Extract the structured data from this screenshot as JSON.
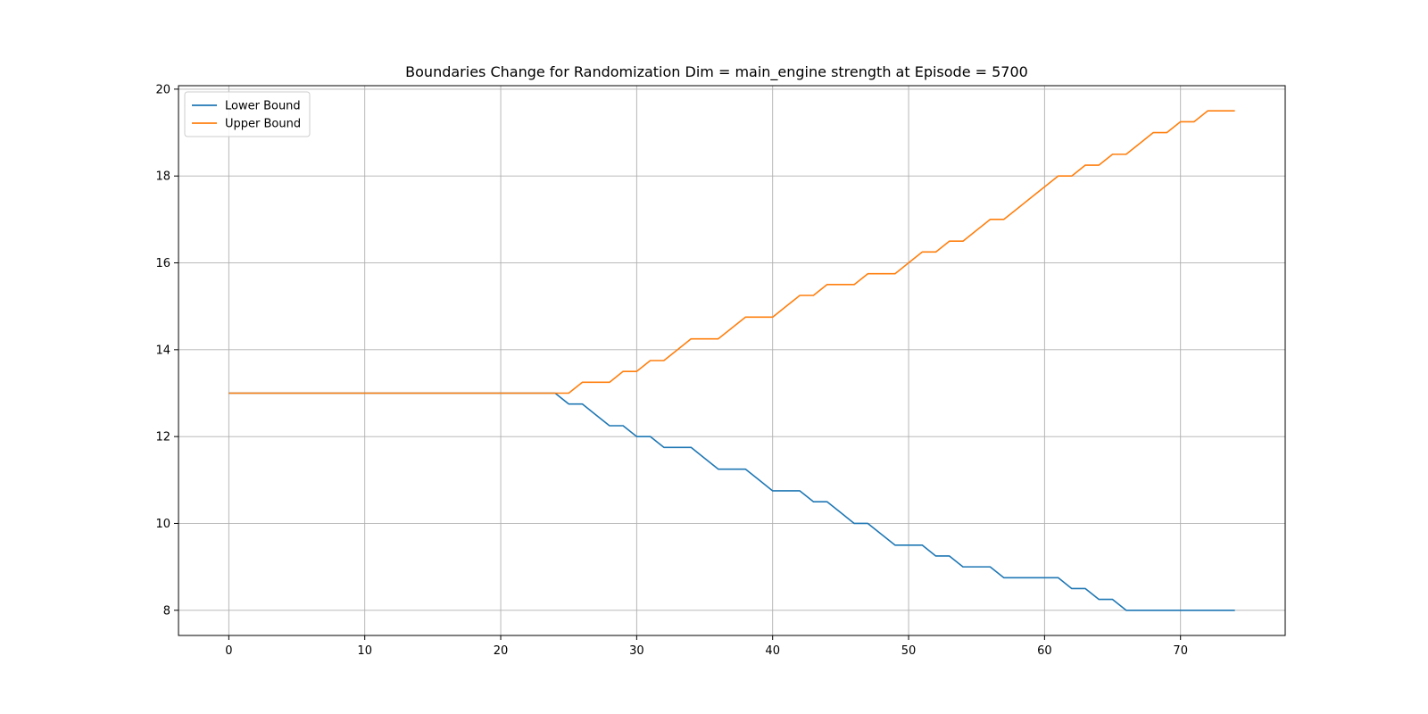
{
  "chart_data": {
    "type": "line",
    "title": "Boundaries Change for Randomization Dim = main_engine strength at Episode = 5700",
    "xlabel": "",
    "ylabel": "",
    "xlim": [
      -3.7,
      77.7
    ],
    "ylim": [
      7.42,
      20.08
    ],
    "xticks": [
      0,
      10,
      20,
      30,
      40,
      50,
      60,
      70
    ],
    "yticks": [
      8,
      10,
      12,
      14,
      16,
      18,
      20
    ],
    "grid": true,
    "legend_position": "top-left",
    "x": [
      0,
      1,
      2,
      3,
      4,
      5,
      6,
      7,
      8,
      9,
      10,
      11,
      12,
      13,
      14,
      15,
      16,
      17,
      18,
      19,
      20,
      21,
      22,
      23,
      24,
      25,
      26,
      27,
      28,
      29,
      30,
      31,
      32,
      33,
      34,
      35,
      36,
      37,
      38,
      39,
      40,
      41,
      42,
      43,
      44,
      45,
      46,
      47,
      48,
      49,
      50,
      51,
      52,
      53,
      54,
      55,
      56,
      57,
      58,
      59,
      60,
      61,
      62,
      63,
      64,
      65,
      66,
      67,
      68,
      69,
      70,
      71,
      72,
      73,
      74
    ],
    "series": [
      {
        "name": "Lower Bound",
        "color": "#1f77b4",
        "values": [
          13,
          13,
          13,
          13,
          13,
          13,
          13,
          13,
          13,
          13,
          13,
          13,
          13,
          13,
          13,
          13,
          13,
          13,
          13,
          13,
          13,
          13,
          13,
          13,
          13,
          12.75,
          12.75,
          12.5,
          12.25,
          12.25,
          12,
          12,
          11.75,
          11.75,
          11.75,
          11.5,
          11.25,
          11.25,
          11.25,
          11,
          10.75,
          10.75,
          10.75,
          10.5,
          10.5,
          10.25,
          10,
          10,
          9.75,
          9.5,
          9.5,
          9.5,
          9.25,
          9.25,
          9,
          9,
          9,
          8.75,
          8.75,
          8.75,
          8.75,
          8.75,
          8.5,
          8.5,
          8.25,
          8.25,
          8,
          8,
          8,
          8,
          8,
          8,
          8,
          8,
          8
        ]
      },
      {
        "name": "Upper Bound",
        "color": "#ff7f0e",
        "values": [
          13,
          13,
          13,
          13,
          13,
          13,
          13,
          13,
          13,
          13,
          13,
          13,
          13,
          13,
          13,
          13,
          13,
          13,
          13,
          13,
          13,
          13,
          13,
          13,
          13,
          13,
          13.25,
          13.25,
          13.25,
          13.5,
          13.5,
          13.75,
          13.75,
          14,
          14.25,
          14.25,
          14.25,
          14.5,
          14.75,
          14.75,
          14.75,
          15,
          15.25,
          15.25,
          15.5,
          15.5,
          15.5,
          15.75,
          15.75,
          15.75,
          16,
          16.25,
          16.25,
          16.5,
          16.5,
          16.75,
          17,
          17,
          17.25,
          17.5,
          17.75,
          18,
          18,
          18.25,
          18.25,
          18.5,
          18.5,
          18.75,
          19,
          19,
          19.25,
          19.25,
          19.5,
          19.5,
          19.5
        ]
      }
    ]
  }
}
